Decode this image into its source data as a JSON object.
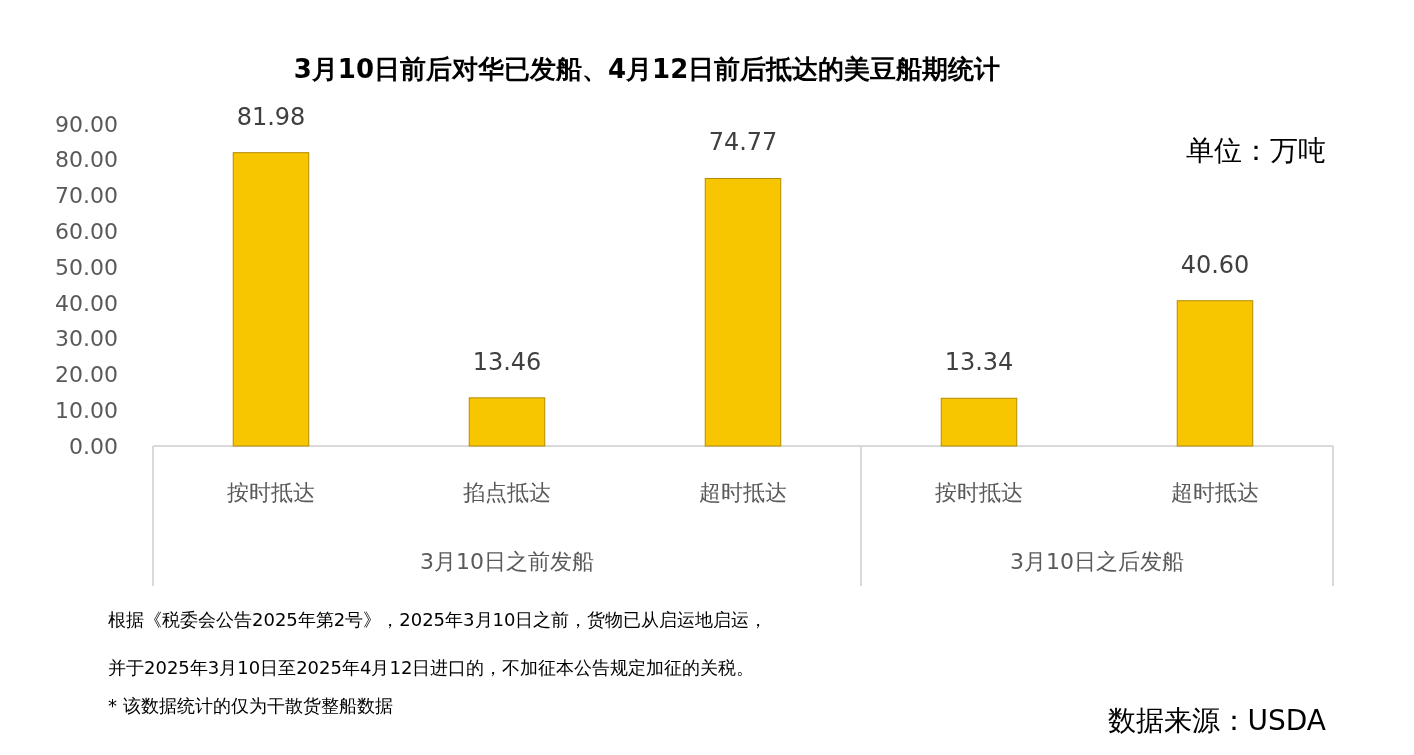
{
  "chart_data": {
    "type": "bar",
    "title": "3月10日前后对华已发船、4月12日前后抵达的美豆船期统计",
    "categories": [
      "按时抵达",
      "掐点抵达",
      "超时抵达",
      "按时抵达",
      "超时抵达"
    ],
    "values": [
      81.98,
      13.46,
      74.77,
      13.34,
      40.6
    ],
    "value_labels": [
      "81.98",
      "13.46",
      "74.77",
      "13.34",
      "40.60"
    ],
    "color": "#f7c600",
    "ylim": [
      0,
      90
    ],
    "yticks": [
      {
        "value": 0,
        "label": "0.00"
      },
      {
        "value": 10,
        "label": "10.00"
      },
      {
        "value": 20,
        "label": "20.00"
      },
      {
        "value": 30,
        "label": "30.00"
      },
      {
        "value": 40,
        "label": "40.00"
      },
      {
        "value": 50,
        "label": "50.00"
      },
      {
        "value": 60,
        "label": "60.00"
      },
      {
        "value": 70,
        "label": "70.00"
      },
      {
        "value": 80,
        "label": "80.00"
      },
      {
        "value": 90,
        "label": "90.00"
      }
    ],
    "annotations": [
      "3月10日之前发船",
      "3月10日之后发船",
      "单位：万吨",
      "根据《税委会公告2025年第2号》，2025年3月10日之前，货物已从启运地启运，",
      "并于2025年3月10日至2025年4月12日进口的，不加征本公告规定加征的关税。",
      "* 该数据统计的仅为干散货整船数据",
      "数据来源：USDA"
    ]
  }
}
